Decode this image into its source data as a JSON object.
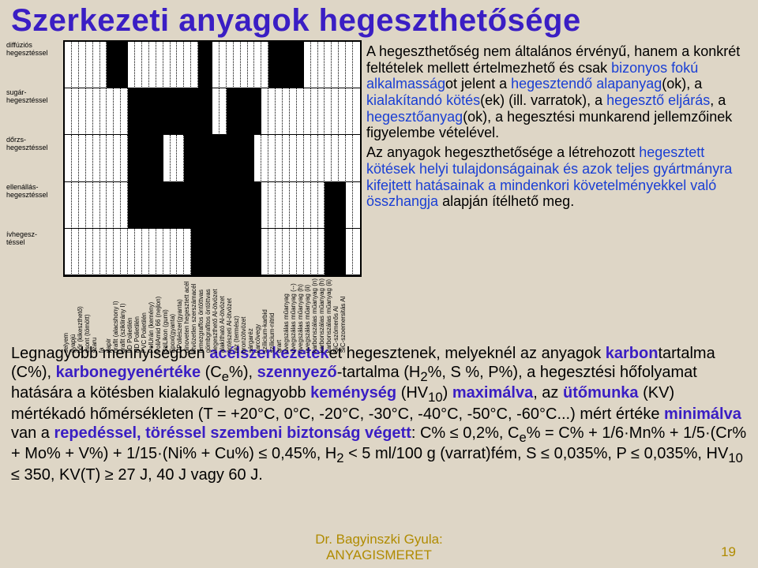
{
  "title": "Szerkezeti anyagok hegeszthetősége",
  "footer_author": "Dr. Bagyinszki Gyula:\nANYAGISMERET",
  "page_number": "19",
  "chart": {
    "type": "heatmap",
    "rows": 5,
    "cols": 42,
    "background_color": "#ffffff",
    "filled_color": "#000000",
    "grid_color": "#000000",
    "row_labels": [
      "diffúziós\nhegesztéssel",
      "sugár-\nhegesztéssel",
      "dőrzs-\nhegesztéssel",
      "ellenállás-\nhegesztéssel",
      "ívhegesz-\ntéssel"
    ],
    "col_labels": [
      "selyem",
      "gyapjú",
      "bőr (kikeszthető)",
      "csont (tömött)",
      "szaru",
      "fa",
      "papír",
      "grafit (alacshony I)",
      "grafit (sziklirány I)",
      "LD Polietilén",
      "HD Polietilén",
      "PVC Polietilén",
      "PolUrán (kemény)",
      "PoliAmid 66 (nejlon)",
      "SziLikon (gumi)",
      "Epoxi(gyanta)",
      "UPoliészer(gyanta)",
      "dinoveten hegesztett acél",
      "ötvözetlen szerszámacél",
      "lemezgraffos öntöttvas",
      "gömbgrafitos öntöttvas",
      "negeszthető Al-ötvözet",
      "alakítható Al-ötvözet",
      "öntészeti Al-ötvözet",
      "réz (termész)",
      "bronzötvözet",
      "sárgaréz",
      "karcövegy",
      "szílicium-karbid",
      "szílicium-nitrid",
      "grart",
      "üvegszálas műanyag",
      "üvegszálas műanyag (--)",
      "üvegszálas műanyag (h)",
      "üvegszálas műanyag (ii)",
      "karbonszálas műanyag (n)",
      "karbonszálas műanyag (h)",
      "karbonszálas műanyag (ii)",
      "SiC-szómerős Al",
      "SiC-szoemersitás Al",
      "",
      ""
    ],
    "filled_cells": [
      [
        0,
        6
      ],
      [
        0,
        7
      ],
      [
        0,
        8
      ],
      [
        0,
        19
      ],
      [
        0,
        20
      ],
      [
        0,
        29
      ],
      [
        0,
        30
      ],
      [
        0,
        31
      ],
      [
        0,
        32
      ],
      [
        0,
        33
      ],
      [
        1,
        9
      ],
      [
        1,
        10
      ],
      [
        1,
        11
      ],
      [
        1,
        12
      ],
      [
        1,
        13
      ],
      [
        1,
        14
      ],
      [
        1,
        15
      ],
      [
        1,
        16
      ],
      [
        1,
        17
      ],
      [
        1,
        18
      ],
      [
        1,
        19
      ],
      [
        1,
        20
      ],
      [
        1,
        23
      ],
      [
        1,
        24
      ],
      [
        1,
        25
      ],
      [
        1,
        26
      ],
      [
        1,
        27
      ],
      [
        2,
        9
      ],
      [
        2,
        10
      ],
      [
        2,
        11
      ],
      [
        2,
        12
      ],
      [
        2,
        13
      ],
      [
        2,
        17
      ],
      [
        2,
        18
      ],
      [
        2,
        19
      ],
      [
        2,
        20
      ],
      [
        2,
        21
      ],
      [
        2,
        22
      ],
      [
        2,
        23
      ],
      [
        2,
        24
      ],
      [
        2,
        25
      ],
      [
        2,
        26
      ],
      [
        3,
        9
      ],
      [
        3,
        10
      ],
      [
        3,
        11
      ],
      [
        3,
        12
      ],
      [
        3,
        13
      ],
      [
        3,
        14
      ],
      [
        3,
        15
      ],
      [
        3,
        16
      ],
      [
        3,
        17
      ],
      [
        3,
        18
      ],
      [
        3,
        19
      ],
      [
        3,
        20
      ],
      [
        3,
        21
      ],
      [
        3,
        22
      ],
      [
        3,
        23
      ],
      [
        3,
        24
      ],
      [
        3,
        25
      ],
      [
        3,
        26
      ],
      [
        3,
        27
      ],
      [
        3,
        37
      ],
      [
        3,
        38
      ],
      [
        3,
        39
      ],
      [
        4,
        18
      ],
      [
        4,
        19
      ],
      [
        4,
        20
      ],
      [
        4,
        21
      ],
      [
        4,
        22
      ],
      [
        4,
        23
      ],
      [
        4,
        24
      ],
      [
        4,
        25
      ],
      [
        4,
        26
      ],
      [
        4,
        27
      ],
      [
        4,
        37
      ],
      [
        4,
        38
      ],
      [
        4,
        39
      ]
    ]
  },
  "right_para1_parts": [
    {
      "t": "A hegeszthetőség nem általános érvényű, hanem a konkrét feltételek mellett értelmezhető és csak "
    },
    {
      "t": "bizonyos fokú alkalmasság",
      "cls": "blue"
    },
    {
      "t": "ot jelent a "
    },
    {
      "t": "hegesztendő alapanyag",
      "cls": "blue"
    },
    {
      "t": "(ok), a "
    },
    {
      "t": "kialakítandó kötés",
      "cls": "blue"
    },
    {
      "t": "(ek) (ill. varratok), a "
    },
    {
      "t": "hegesztő eljárás",
      "cls": "blue"
    },
    {
      "t": ", a "
    },
    {
      "t": "hegesztőanyag",
      "cls": "blue"
    },
    {
      "t": "(ok), a hegesztési munkarend jellemzőinek figyelembe vételével."
    }
  ],
  "right_para2_parts": [
    {
      "t": "Az anyagok hegeszthetősége a létrehozott "
    },
    {
      "t": "hegesztett kötések helyi tulajdonságainak és azok teljes gyártmányra kifejtett hatásainak a mindenkori követelményekkel való összhangja",
      "cls": "blue"
    },
    {
      "t": " alapján ítélhető meg."
    }
  ],
  "lower_parts": [
    {
      "t": "Legnagyobb mennyiségben "
    },
    {
      "t": "acélszerkezetek",
      "cls": "pbold"
    },
    {
      "t": "et hegesztenek, melyeknél az anyagok "
    },
    {
      "t": "karbon",
      "cls": "pbold"
    },
    {
      "t": "tartalma (C%), "
    },
    {
      "t": "karbonegyenértéke",
      "cls": "pbold"
    },
    {
      "t": " (C"
    },
    {
      "sub": "e"
    },
    {
      "t": "%), "
    },
    {
      "t": "szennyező",
      "cls": "pbold"
    },
    {
      "t": "-tartalma (H"
    },
    {
      "sub": "2"
    },
    {
      "t": "%, S %, P%), a hegesztési hőfolyamat hatására a kötésben kialakuló legnagyobb "
    },
    {
      "t": "keménység",
      "cls": "pbold"
    },
    {
      "t": " (HV"
    },
    {
      "sub": "10"
    },
    {
      "t": ") "
    },
    {
      "t": "maximálva",
      "cls": "pbold"
    },
    {
      "t": ", az "
    },
    {
      "t": "ütőmunka",
      "cls": "pbold"
    },
    {
      "t": " (KV) mértékadó hőmérsékleten (T = +20°C, 0°C, -20°C, -30°C, -40°C, -50°C, -60°C...) mért értéke "
    },
    {
      "t": "minimálva",
      "cls": "pbold"
    },
    {
      "t": " van a "
    },
    {
      "t": "repedéssel, töréssel szembeni biztonság végett",
      "cls": "pbold"
    },
    {
      "t": ": C% ≤ 0,2%, C"
    },
    {
      "sub": "e"
    },
    {
      "t": "% = C% + 1/6·Mn% + 1/5·(Cr% + Mo% + V%) + 1/15·(Ni% + Cu%) ≤ 0,45%, H"
    },
    {
      "sub": "2"
    },
    {
      "t": " < 5 ml/100 g (varrat)fém, S ≤ 0,035%, P ≤ 0,035%, HV"
    },
    {
      "sub": "10"
    },
    {
      "t": " ≤ 350, KV(T) ≥ 27 J, 40 J vagy 60 J."
    }
  ]
}
